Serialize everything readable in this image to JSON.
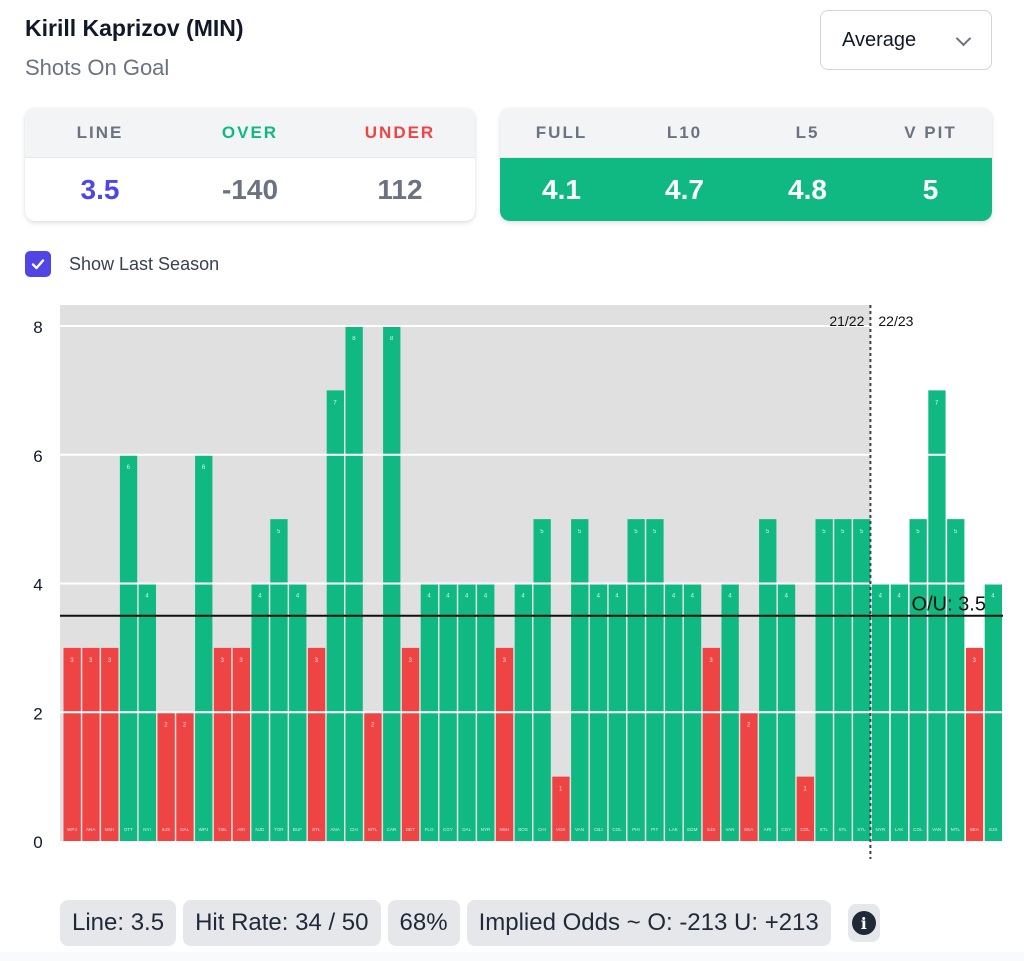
{
  "header": {
    "player": "Kirill Kaprizov (MIN)",
    "market": "Shots On Goal",
    "dropdown": {
      "selected": "Average"
    }
  },
  "line_card": {
    "headers": [
      "LINE",
      "OVER",
      "UNDER"
    ],
    "values": [
      "3.5",
      "-140",
      "112"
    ],
    "header_colors": [
      "#6b7280",
      "#10b981",
      "#ef4444"
    ],
    "value_colors": [
      "#4f46e5",
      "#6b7280",
      "#6b7280"
    ]
  },
  "avg_card": {
    "headers": [
      "FULL",
      "L10",
      "L5",
      "V PIT"
    ],
    "values": [
      "4.1",
      "4.7",
      "4.8",
      "5"
    ]
  },
  "toggle": {
    "label": "Show Last Season",
    "checked": true
  },
  "footer": {
    "line": "Line: 3.5",
    "hit_rate": "Hit Rate: 34 / 50",
    "pct": "68%",
    "implied": "Implied Odds ~ O: -213 U: +213"
  },
  "colors": {
    "over": "#10b981",
    "under": "#ef4444",
    "accent": "#4f46e5",
    "prev_season_bg": "#e0e0e0"
  },
  "chart_data": {
    "type": "bar",
    "title": "",
    "xlabel": "",
    "ylabel": "",
    "ylim": [
      0,
      8.3
    ],
    "yticks": [
      0,
      2,
      4,
      6,
      8
    ],
    "grid": true,
    "line": 3.5,
    "line_label": "O/U: 3.5",
    "season_labels": [
      "21/22",
      "22/23"
    ],
    "season_split_index": 43,
    "categories": [
      "WPJ",
      "ANA",
      "NSH",
      "OTT",
      "NYI",
      "SJS",
      "DAL",
      "WPJ",
      "T.BL",
      "ARI",
      "NJD",
      "TOR",
      "BUF",
      "STL",
      "ANA",
      "CHI",
      "MTL",
      "CAR",
      "DET",
      "FLO",
      "CGY",
      "DAL",
      "NYR",
      "NSH",
      "BOS",
      "CHI",
      "VGK",
      "VAN",
      "CBJ",
      "COL",
      "PHI",
      "PIT",
      "LAK",
      "EDM",
      "SJS",
      "VAN",
      "SEA",
      "ARI",
      "CGY",
      "COL",
      "STL",
      "STL",
      "STL",
      "NYR",
      "LAK",
      "COL",
      "VAN",
      "MTL",
      "SEA",
      "SJS"
    ],
    "values": [
      3,
      3,
      3,
      6,
      4,
      2,
      2,
      6,
      3,
      3,
      4,
      5,
      4,
      3,
      7,
      8,
      2,
      8,
      3,
      4,
      4,
      4,
      4,
      3,
      4,
      5,
      1,
      5,
      4,
      4,
      5,
      5,
      4,
      4,
      3,
      4,
      2,
      5,
      4,
      1,
      5,
      5,
      5,
      4,
      4,
      5,
      7,
      5,
      3,
      4
    ]
  }
}
